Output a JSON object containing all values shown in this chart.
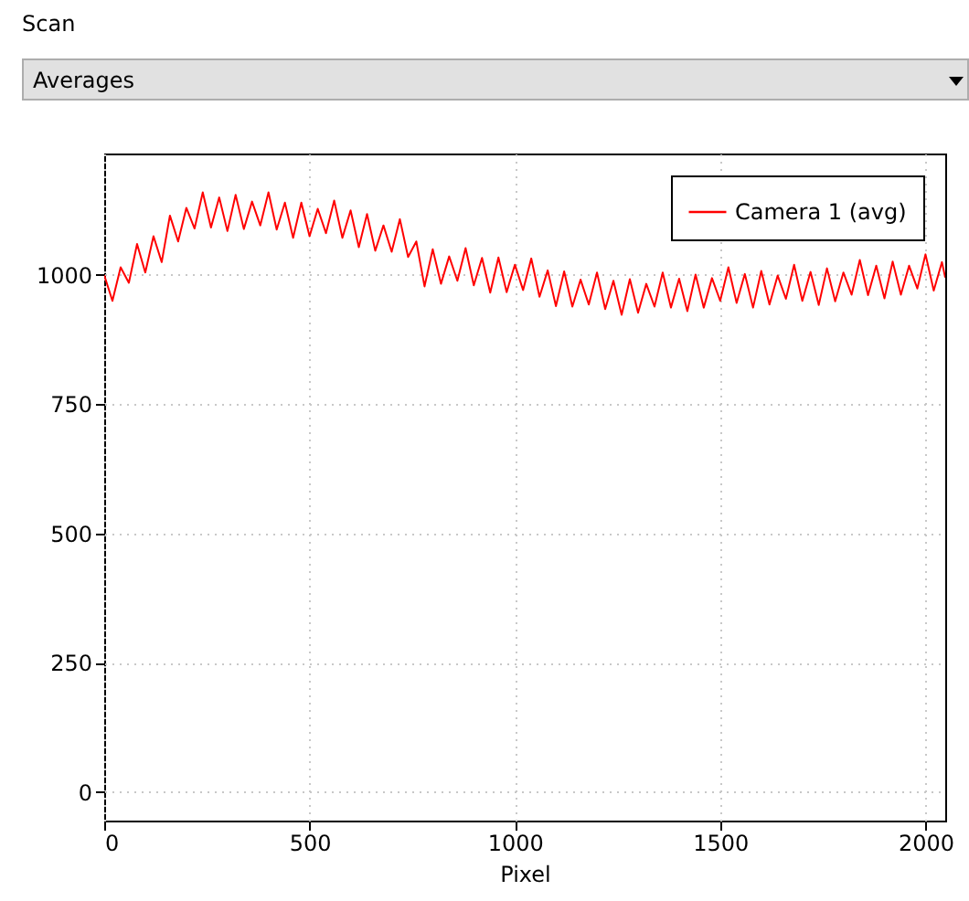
{
  "chart_data": {
    "type": "line",
    "annotations": [
      "Scan",
      "Averages"
    ],
    "xlabel": "Pixel",
    "x": [
      0,
      20,
      40,
      60,
      80,
      100,
      120,
      140,
      160,
      180,
      200,
      220,
      240,
      260,
      280,
      300,
      320,
      340,
      360,
      380,
      400,
      420,
      440,
      460,
      480,
      500,
      520,
      540,
      560,
      580,
      600,
      620,
      640,
      660,
      680,
      700,
      720,
      740,
      760,
      780,
      800,
      820,
      840,
      860,
      880,
      900,
      920,
      940,
      960,
      980,
      1000,
      1020,
      1040,
      1060,
      1080,
      1100,
      1120,
      1140,
      1160,
      1180,
      1200,
      1220,
      1240,
      1260,
      1280,
      1300,
      1320,
      1340,
      1360,
      1380,
      1400,
      1420,
      1440,
      1460,
      1480,
      1500,
      1520,
      1540,
      1560,
      1580,
      1600,
      1620,
      1640,
      1660,
      1680,
      1700,
      1720,
      1740,
      1760,
      1780,
      1800,
      1820,
      1840,
      1860,
      1880,
      1900,
      1920,
      1940,
      1960,
      1980,
      2000,
      2020,
      2040,
      2048
    ],
    "series": [
      {
        "name": "Camera 1 (avg)",
        "color": "#ff0000",
        "values": [
          1000,
          950,
          1015,
          985,
          1060,
          1005,
          1075,
          1025,
          1115,
          1065,
          1130,
          1090,
          1160,
          1092,
          1150,
          1085,
          1155,
          1089,
          1142,
          1096,
          1160,
          1088,
          1140,
          1072,
          1140,
          1075,
          1128,
          1081,
          1144,
          1072,
          1125,
          1054,
          1118,
          1047,
          1096,
          1045,
          1108,
          1035,
          1065,
          978,
          1050,
          983,
          1036,
          989,
          1052,
          980,
          1033,
          966,
          1034,
          967,
          1020,
          971,
          1032,
          958,
          1009,
          940,
          1007,
          939,
          991,
          943,
          1005,
          934,
          989,
          923,
          992,
          927,
          983,
          939,
          1005,
          937,
          993,
          930,
          1001,
          937,
          994,
          950,
          1015,
          946,
          1002,
          937,
          1008,
          943,
          999,
          954,
          1020,
          950,
          1006,
          942,
          1013,
          949,
          1005,
          962,
          1029,
          961,
          1018,
          955,
          1026,
          962,
          1018,
          974,
          1040,
          970,
          1025,
          995
        ]
      }
    ],
    "xlim": [
      0,
      2048
    ],
    "xticks": [
      0,
      500,
      1000,
      1500,
      2000
    ],
    "ylim": [
      -55,
      1235
    ],
    "yticks": [
      0,
      250,
      500,
      750,
      1000
    ],
    "grid": true,
    "legend": "top right"
  }
}
